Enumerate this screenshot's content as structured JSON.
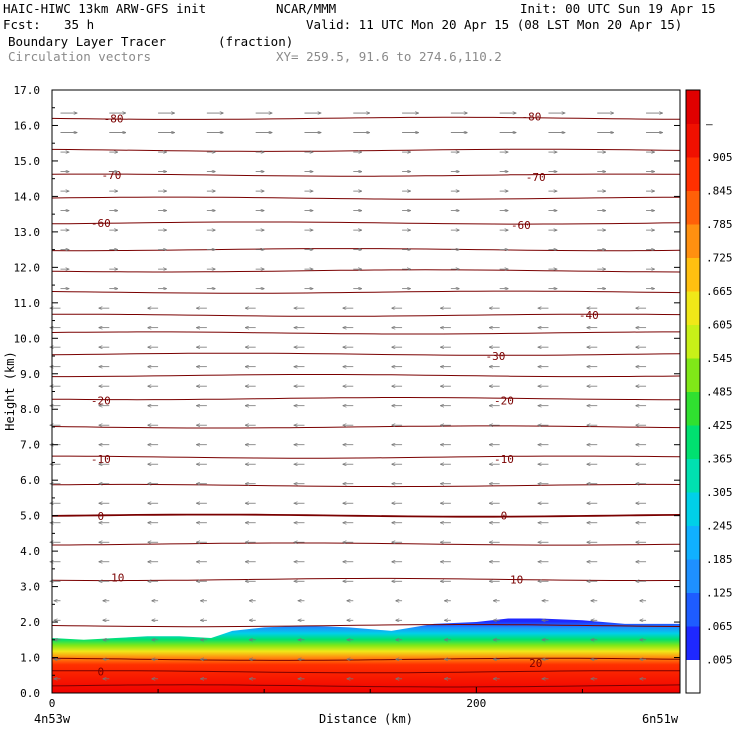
{
  "header": {
    "model_line": "HAIC-HIWC 13km ARW-GFS init",
    "org": "NCAR/MMM",
    "init": "Init: 00 UTC Sun 19 Apr 15",
    "fcst_label": "Fcst:",
    "fcst_value": "35 h",
    "valid": "Valid: 11 UTC Mon 20 Apr 15 (08 LST Mon 20 Apr 15)",
    "field": "Boundary Layer Tracer",
    "field_units": "(fraction)",
    "vectors": "Circulation vectors",
    "xy": "XY= 259.5, 91.6 to 274.6,110.2"
  },
  "chart_data": {
    "type": "heatmap",
    "title": "Boundary Layer Tracer",
    "ylabel": "Height (km)",
    "xlabel": "Distance (km)",
    "ylim": [
      0,
      17
    ],
    "xlim": [
      0,
      296
    ],
    "y_ticks": [
      "0.0",
      "1.0",
      "2.0",
      "3.0",
      "4.0",
      "5.0",
      "6.0",
      "7.0",
      "8.0",
      "9.0",
      "10.0",
      "11.0",
      "12.0",
      "13.0",
      "14.0",
      "15.0",
      "16.0",
      "17.0"
    ],
    "x_ticks": [
      {
        "value": 0,
        "label": "0"
      },
      {
        "value": 200,
        "label": "200"
      }
    ],
    "x_endpoints": {
      "left": "4n53w",
      "right": "6n51w"
    },
    "colorbar": {
      "labels": [
        ".005",
        ".065",
        ".125",
        ".185",
        ".245",
        ".305",
        ".365",
        ".425",
        ".485",
        ".545",
        ".605",
        ".665",
        ".725",
        ".785",
        ".845",
        ".905",
        "–"
      ],
      "colors": [
        "#ffffff",
        "#1e28ff",
        "#1e5cff",
        "#1e90ff",
        "#10b0ff",
        "#00d0e8",
        "#00e0b0",
        "#00e070",
        "#30e030",
        "#80e818",
        "#c8f018",
        "#f0e818",
        "#ffc010",
        "#ff9010",
        "#ff6008",
        "#ff3000",
        "#f01000",
        "#e00000"
      ]
    },
    "isotherm_labels": [
      {
        "value": "-80",
        "x": 29,
        "y": 16.2
      },
      {
        "value": "-80",
        "x": 226,
        "y": 16.25
      },
      {
        "value": "-70",
        "x": 28,
        "y": 14.6
      },
      {
        "value": "-70",
        "x": 228,
        "y": 14.55
      },
      {
        "value": "-60",
        "x": 23,
        "y": 13.25
      },
      {
        "value": "-60",
        "x": 221,
        "y": 13.2
      },
      {
        "value": "-40",
        "x": 253,
        "y": 10.65
      },
      {
        "value": "-30",
        "x": 209,
        "y": 9.5
      },
      {
        "value": "-20",
        "x": 23,
        "y": 8.25
      },
      {
        "value": "-20",
        "x": 213,
        "y": 8.25
      },
      {
        "value": "-10",
        "x": 23,
        "y": 6.6
      },
      {
        "value": "-10",
        "x": 213,
        "y": 6.6
      },
      {
        "value": "0",
        "x": 23,
        "y": 4.99
      },
      {
        "value": "0",
        "x": 213,
        "y": 5.0
      },
      {
        "value": "10",
        "x": 31,
        "y": 3.25
      },
      {
        "value": "10",
        "x": 219,
        "y": 3.2
      },
      {
        "value": "20",
        "x": 228,
        "y": 0.85
      },
      {
        "value": "0",
        "x": 23,
        "y": 0.6
      }
    ],
    "contour_levels_y": [
      0.2,
      0.6,
      0.95,
      1.9,
      3.2,
      4.2,
      5.0,
      5.85,
      6.65,
      7.5,
      8.3,
      8.95,
      9.55,
      10.15,
      10.65,
      11.3,
      11.9,
      12.5,
      13.25,
      13.95,
      14.6,
      15.3,
      16.2
    ],
    "bl_top_y": [
      [
        0,
        1.55
      ],
      [
        15,
        1.5
      ],
      [
        30,
        1.55
      ],
      [
        45,
        1.6
      ],
      [
        60,
        1.6
      ],
      [
        75,
        1.55
      ],
      [
        85,
        1.75
      ],
      [
        100,
        1.85
      ],
      [
        120,
        1.9
      ],
      [
        140,
        1.85
      ],
      [
        160,
        1.75
      ],
      [
        180,
        1.95
      ],
      [
        200,
        2.0
      ],
      [
        215,
        2.1
      ],
      [
        230,
        2.1
      ],
      [
        250,
        2.05
      ],
      [
        270,
        1.95
      ],
      [
        296,
        1.95
      ]
    ]
  }
}
